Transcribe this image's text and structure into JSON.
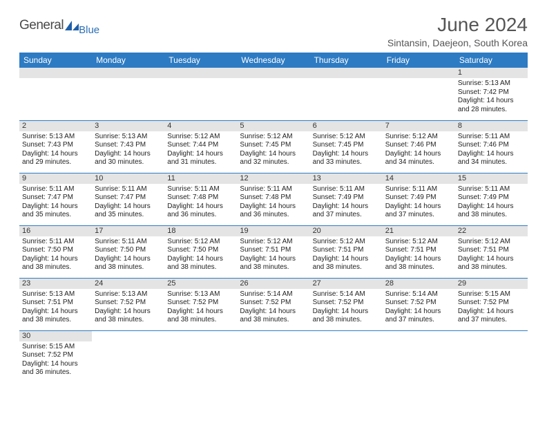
{
  "logo": {
    "text1": "General",
    "text2": "Blue"
  },
  "title": "June 2024",
  "location": "Sintansin, Daejeon, South Korea",
  "colors": {
    "header_bg": "#2d7bc3",
    "header_text": "#ffffff",
    "daynum_bg": "#e4e4e4",
    "row_border": "#2d7bc3",
    "logo_blue": "#2b6fb3",
    "logo_gray": "#4a4a4a"
  },
  "weekdays": [
    "Sunday",
    "Monday",
    "Tuesday",
    "Wednesday",
    "Thursday",
    "Friday",
    "Saturday"
  ],
  "weeks": [
    [
      null,
      null,
      null,
      null,
      null,
      null,
      {
        "n": "1",
        "sr": "Sunrise: 5:13 AM",
        "ss": "Sunset: 7:42 PM",
        "d1": "Daylight: 14 hours",
        "d2": "and 28 minutes."
      }
    ],
    [
      {
        "n": "2",
        "sr": "Sunrise: 5:13 AM",
        "ss": "Sunset: 7:43 PM",
        "d1": "Daylight: 14 hours",
        "d2": "and 29 minutes."
      },
      {
        "n": "3",
        "sr": "Sunrise: 5:13 AM",
        "ss": "Sunset: 7:43 PM",
        "d1": "Daylight: 14 hours",
        "d2": "and 30 minutes."
      },
      {
        "n": "4",
        "sr": "Sunrise: 5:12 AM",
        "ss": "Sunset: 7:44 PM",
        "d1": "Daylight: 14 hours",
        "d2": "and 31 minutes."
      },
      {
        "n": "5",
        "sr": "Sunrise: 5:12 AM",
        "ss": "Sunset: 7:45 PM",
        "d1": "Daylight: 14 hours",
        "d2": "and 32 minutes."
      },
      {
        "n": "6",
        "sr": "Sunrise: 5:12 AM",
        "ss": "Sunset: 7:45 PM",
        "d1": "Daylight: 14 hours",
        "d2": "and 33 minutes."
      },
      {
        "n": "7",
        "sr": "Sunrise: 5:12 AM",
        "ss": "Sunset: 7:46 PM",
        "d1": "Daylight: 14 hours",
        "d2": "and 34 minutes."
      },
      {
        "n": "8",
        "sr": "Sunrise: 5:11 AM",
        "ss": "Sunset: 7:46 PM",
        "d1": "Daylight: 14 hours",
        "d2": "and 34 minutes."
      }
    ],
    [
      {
        "n": "9",
        "sr": "Sunrise: 5:11 AM",
        "ss": "Sunset: 7:47 PM",
        "d1": "Daylight: 14 hours",
        "d2": "and 35 minutes."
      },
      {
        "n": "10",
        "sr": "Sunrise: 5:11 AM",
        "ss": "Sunset: 7:47 PM",
        "d1": "Daylight: 14 hours",
        "d2": "and 35 minutes."
      },
      {
        "n": "11",
        "sr": "Sunrise: 5:11 AM",
        "ss": "Sunset: 7:48 PM",
        "d1": "Daylight: 14 hours",
        "d2": "and 36 minutes."
      },
      {
        "n": "12",
        "sr": "Sunrise: 5:11 AM",
        "ss": "Sunset: 7:48 PM",
        "d1": "Daylight: 14 hours",
        "d2": "and 36 minutes."
      },
      {
        "n": "13",
        "sr": "Sunrise: 5:11 AM",
        "ss": "Sunset: 7:49 PM",
        "d1": "Daylight: 14 hours",
        "d2": "and 37 minutes."
      },
      {
        "n": "14",
        "sr": "Sunrise: 5:11 AM",
        "ss": "Sunset: 7:49 PM",
        "d1": "Daylight: 14 hours",
        "d2": "and 37 minutes."
      },
      {
        "n": "15",
        "sr": "Sunrise: 5:11 AM",
        "ss": "Sunset: 7:49 PM",
        "d1": "Daylight: 14 hours",
        "d2": "and 38 minutes."
      }
    ],
    [
      {
        "n": "16",
        "sr": "Sunrise: 5:11 AM",
        "ss": "Sunset: 7:50 PM",
        "d1": "Daylight: 14 hours",
        "d2": "and 38 minutes."
      },
      {
        "n": "17",
        "sr": "Sunrise: 5:11 AM",
        "ss": "Sunset: 7:50 PM",
        "d1": "Daylight: 14 hours",
        "d2": "and 38 minutes."
      },
      {
        "n": "18",
        "sr": "Sunrise: 5:12 AM",
        "ss": "Sunset: 7:50 PM",
        "d1": "Daylight: 14 hours",
        "d2": "and 38 minutes."
      },
      {
        "n": "19",
        "sr": "Sunrise: 5:12 AM",
        "ss": "Sunset: 7:51 PM",
        "d1": "Daylight: 14 hours",
        "d2": "and 38 minutes."
      },
      {
        "n": "20",
        "sr": "Sunrise: 5:12 AM",
        "ss": "Sunset: 7:51 PM",
        "d1": "Daylight: 14 hours",
        "d2": "and 38 minutes."
      },
      {
        "n": "21",
        "sr": "Sunrise: 5:12 AM",
        "ss": "Sunset: 7:51 PM",
        "d1": "Daylight: 14 hours",
        "d2": "and 38 minutes."
      },
      {
        "n": "22",
        "sr": "Sunrise: 5:12 AM",
        "ss": "Sunset: 7:51 PM",
        "d1": "Daylight: 14 hours",
        "d2": "and 38 minutes."
      }
    ],
    [
      {
        "n": "23",
        "sr": "Sunrise: 5:13 AM",
        "ss": "Sunset: 7:51 PM",
        "d1": "Daylight: 14 hours",
        "d2": "and 38 minutes."
      },
      {
        "n": "24",
        "sr": "Sunrise: 5:13 AM",
        "ss": "Sunset: 7:52 PM",
        "d1": "Daylight: 14 hours",
        "d2": "and 38 minutes."
      },
      {
        "n": "25",
        "sr": "Sunrise: 5:13 AM",
        "ss": "Sunset: 7:52 PM",
        "d1": "Daylight: 14 hours",
        "d2": "and 38 minutes."
      },
      {
        "n": "26",
        "sr": "Sunrise: 5:14 AM",
        "ss": "Sunset: 7:52 PM",
        "d1": "Daylight: 14 hours",
        "d2": "and 38 minutes."
      },
      {
        "n": "27",
        "sr": "Sunrise: 5:14 AM",
        "ss": "Sunset: 7:52 PM",
        "d1": "Daylight: 14 hours",
        "d2": "and 38 minutes."
      },
      {
        "n": "28",
        "sr": "Sunrise: 5:14 AM",
        "ss": "Sunset: 7:52 PM",
        "d1": "Daylight: 14 hours",
        "d2": "and 37 minutes."
      },
      {
        "n": "29",
        "sr": "Sunrise: 5:15 AM",
        "ss": "Sunset: 7:52 PM",
        "d1": "Daylight: 14 hours",
        "d2": "and 37 minutes."
      }
    ],
    [
      {
        "n": "30",
        "sr": "Sunrise: 5:15 AM",
        "ss": "Sunset: 7:52 PM",
        "d1": "Daylight: 14 hours",
        "d2": "and 36 minutes."
      },
      null,
      null,
      null,
      null,
      null,
      null
    ]
  ]
}
